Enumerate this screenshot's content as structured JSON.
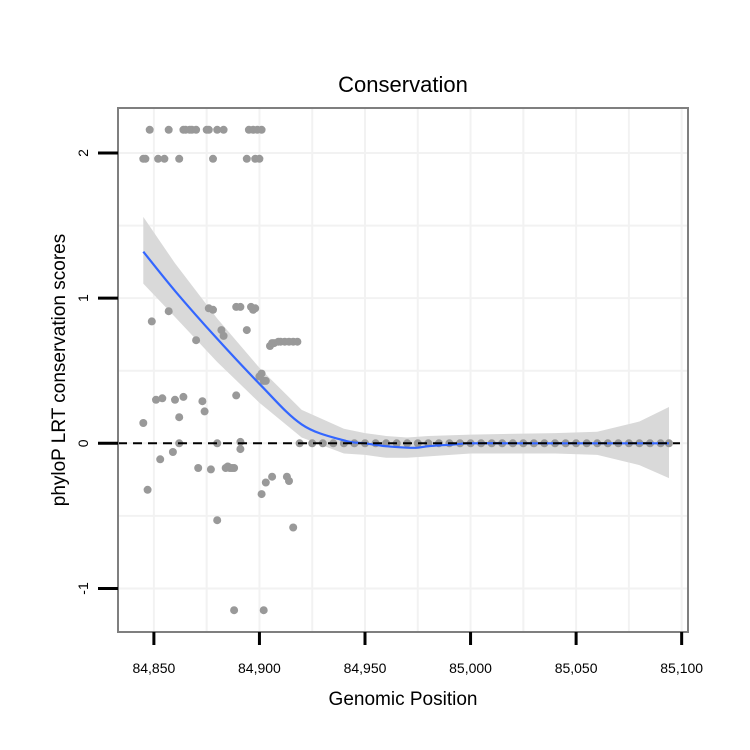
{
  "chart_data": {
    "type": "scatter",
    "title": "Conservation",
    "xlabel": "Genomic Position",
    "ylabel": "phyloP LRT conservation scores",
    "xlim": [
      84833,
      85103
    ],
    "ylim": [
      -1.3,
      2.31
    ],
    "x_ticks": [
      84850,
      84900,
      84950,
      85000,
      85050,
      85100
    ],
    "x_tick_labels": [
      "84,850",
      "84,900",
      "84,950",
      "85,000",
      "85,050",
      "85,100"
    ],
    "y_ticks": [
      -1,
      0,
      1,
      2
    ],
    "y_tick_labels": [
      "-1",
      "0",
      "1",
      "2"
    ],
    "grid": true,
    "reference_line": {
      "y": 0,
      "style": "dashed"
    },
    "colors": {
      "points": "#999999",
      "smooth": "#3366ff",
      "ribbon": "#d9d9d9",
      "panel_border": "#7f7f7f",
      "grid": "#f2f2f2"
    },
    "series": [
      {
        "name": "phyloP scores",
        "kind": "points",
        "x": [
          84845,
          84846,
          84848,
          84852,
          84855,
          84857,
          84862,
          84864,
          84865,
          84867,
          84868,
          84870,
          84875,
          84876,
          84878,
          84880,
          84883,
          84894,
          84895,
          84897,
          84898,
          84899,
          84900,
          84901,
          84896,
          84898,
          84900,
          84878,
          84889,
          84891,
          84894,
          84897,
          84876,
          84870,
          84882,
          84883,
          84901,
          84902,
          84903,
          84905,
          84906,
          84907,
          84909,
          84910,
          84912,
          84914,
          84916,
          84918,
          84845,
          84849,
          84851,
          84854,
          84857,
          84860,
          84862,
          84864,
          84873,
          84874,
          84889,
          84891,
          84853,
          84859,
          84871,
          84877,
          84884,
          84885,
          84886,
          84887,
          84888,
          84891,
          84901,
          84903,
          84906,
          84913,
          84914,
          84916,
          84847,
          84880,
          84888,
          84902
        ],
        "y": [
          1.96,
          1.96,
          2.16,
          1.96,
          1.96,
          2.16,
          1.96,
          2.16,
          2.16,
          2.16,
          2.16,
          2.16,
          2.16,
          2.16,
          1.96,
          2.16,
          2.16,
          1.96,
          2.16,
          2.16,
          1.96,
          2.16,
          1.96,
          2.16,
          0.94,
          0.93,
          0.46,
          0.92,
          0.94,
          0.94,
          0.78,
          0.92,
          0.93,
          0.71,
          0.78,
          0.74,
          0.48,
          0.43,
          0.43,
          0.67,
          0.69,
          0.69,
          0.7,
          0.7,
          0.7,
          0.7,
          0.7,
          0.7,
          0.14,
          0.84,
          0.3,
          0.31,
          0.91,
          0.3,
          0.18,
          0.32,
          0.29,
          0.22,
          0.33,
          0.01,
          -0.11,
          -0.06,
          -0.17,
          -0.18,
          -0.17,
          -0.16,
          -0.17,
          -0.17,
          -1.15,
          -0.04,
          -0.35,
          -0.27,
          -0.23,
          -0.23,
          -0.26,
          -0.58,
          -0.32,
          -0.53,
          -0.17,
          -1.15
        ]
      },
      {
        "name": "zero scores",
        "kind": "points",
        "x": [
          84862,
          84880,
          84919,
          84925,
          84930,
          84935,
          84940,
          84945,
          84950,
          84955,
          84960,
          84965,
          84970,
          84975,
          84980,
          84985,
          84990,
          84995,
          85000,
          85005,
          85010,
          85015,
          85020,
          85025,
          85030,
          85035,
          85040,
          85045,
          85050,
          85055,
          85060,
          85065,
          85070,
          85075,
          85080,
          85085,
          85090,
          85094
        ],
        "y": [
          0,
          0,
          0,
          0,
          0,
          0,
          0,
          0,
          0,
          0,
          0,
          0,
          0,
          0,
          0,
          0,
          0,
          0,
          0,
          0,
          0,
          0,
          0,
          0,
          0,
          0,
          0,
          0,
          0,
          0,
          0,
          0,
          0,
          0,
          0,
          0,
          0,
          0
        ]
      },
      {
        "name": "loess smooth",
        "kind": "line",
        "x": [
          84845,
          84860,
          84880,
          84900,
          84920,
          84940,
          84950,
          84960,
          84970,
          84975,
          84980,
          84990,
          85000,
          85020,
          85040,
          85060,
          85080,
          85094
        ],
        "y": [
          1.32,
          1.05,
          0.72,
          0.41,
          0.13,
          0.02,
          0.0,
          -0.02,
          -0.03,
          -0.03,
          -0.02,
          -0.01,
          0.0,
          0.0,
          0.0,
          0.0,
          0.0,
          0.0
        ]
      },
      {
        "name": "confidence band upper",
        "kind": "band_upper",
        "x": [
          84845,
          84860,
          84880,
          84900,
          84920,
          84940,
          84950,
          84960,
          84970,
          84980,
          85000,
          85040,
          85060,
          85080,
          85094
        ],
        "y": [
          1.56,
          1.24,
          0.86,
          0.52,
          0.23,
          0.1,
          0.07,
          0.05,
          0.04,
          0.05,
          0.06,
          0.07,
          0.08,
          0.15,
          0.25
        ]
      },
      {
        "name": "confidence band lower",
        "kind": "band_lower",
        "x": [
          84845,
          84860,
          84880,
          84900,
          84920,
          84940,
          84950,
          84960,
          84970,
          84980,
          85000,
          85040,
          85060,
          85080,
          85094
        ],
        "y": [
          1.1,
          0.87,
          0.56,
          0.28,
          0.04,
          -0.07,
          -0.08,
          -0.1,
          -0.1,
          -0.09,
          -0.07,
          -0.07,
          -0.08,
          -0.15,
          -0.24
        ]
      }
    ]
  }
}
